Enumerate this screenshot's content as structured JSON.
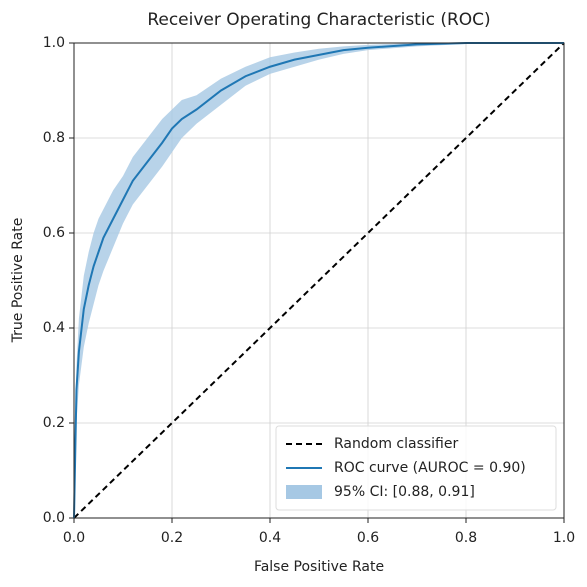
{
  "chart_data": {
    "type": "line",
    "title": "Receiver Operating Characteristic (ROC)",
    "xlabel": "False Positive Rate",
    "ylabel": "True Positive Rate",
    "x": [
      0,
      0.005,
      0.01,
      0.02,
      0.03,
      0.04,
      0.05,
      0.06,
      0.08,
      0.1,
      0.12,
      0.15,
      0.18,
      0.2,
      0.22,
      0.25,
      0.3,
      0.35,
      0.4,
      0.45,
      0.5,
      0.55,
      0.6,
      0.7,
      0.8,
      1.0
    ],
    "series": [
      {
        "name": "ROC curve (AUROC = 0.90)",
        "color": "#1f77b4",
        "values": [
          0,
          0.27,
          0.35,
          0.44,
          0.49,
          0.53,
          0.56,
          0.59,
          0.63,
          0.67,
          0.71,
          0.75,
          0.79,
          0.82,
          0.84,
          0.86,
          0.9,
          0.93,
          0.95,
          0.965,
          0.975,
          0.985,
          0.99,
          0.997,
          1.0,
          1.0
        ]
      }
    ],
    "band": {
      "name": "95% CI: [0.88, 0.91]",
      "color": "#a6c8e4",
      "lower": [
        0,
        0.2,
        0.28,
        0.36,
        0.41,
        0.45,
        0.49,
        0.52,
        0.57,
        0.62,
        0.66,
        0.7,
        0.74,
        0.77,
        0.8,
        0.83,
        0.87,
        0.91,
        0.935,
        0.95,
        0.965,
        0.977,
        0.985,
        0.993,
        0.998,
        1.0
      ],
      "upper": [
        0,
        0.32,
        0.42,
        0.51,
        0.56,
        0.6,
        0.63,
        0.65,
        0.69,
        0.72,
        0.76,
        0.8,
        0.84,
        0.86,
        0.88,
        0.89,
        0.925,
        0.95,
        0.97,
        0.98,
        0.988,
        0.993,
        0.996,
        1.0,
        1.0,
        1.0
      ]
    },
    "reference": {
      "name": "Random classifier",
      "color": "#000000",
      "x": [
        0,
        1
      ],
      "values": [
        0,
        1
      ]
    },
    "xlim": [
      0,
      1
    ],
    "ylim": [
      0,
      1
    ],
    "xticks": [
      {
        "value": 0,
        "label": "0.0"
      },
      0.2,
      0.4,
      0.6,
      0.8,
      {
        "value": 1,
        "label": "1.0"
      }
    ],
    "yticks": [
      {
        "value": 0,
        "label": "0.0"
      },
      0.2,
      0.4,
      0.6,
      0.8,
      {
        "value": 1,
        "label": "1.0"
      }
    ],
    "grid": true,
    "legend": "lower right"
  }
}
